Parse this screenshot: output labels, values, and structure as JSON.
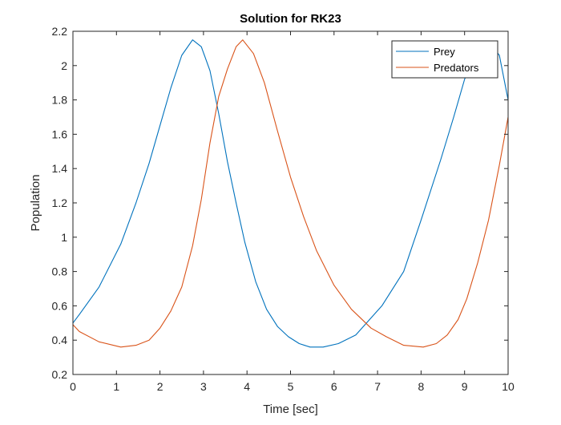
{
  "chart_data": {
    "type": "line",
    "title": "Solution for RK23",
    "xlabel": "Time [sec]",
    "ylabel": "Population",
    "xlim": [
      0,
      10
    ],
    "ylim": [
      0.2,
      2.2
    ],
    "xticks": [
      0,
      1,
      2,
      3,
      4,
      5,
      6,
      7,
      8,
      9,
      10
    ],
    "xtick_labels": [
      "0",
      "1",
      "2",
      "3",
      "4",
      "5",
      "6",
      "7",
      "8",
      "9",
      "10"
    ],
    "yticks": [
      0.2,
      0.4,
      0.6,
      0.8,
      1.0,
      1.2,
      1.4,
      1.6,
      1.8,
      2.0,
      2.2
    ],
    "ytick_labels": [
      "0.2",
      "0.4",
      "0.6",
      "0.8",
      "1",
      "1.2",
      "1.4",
      "1.6",
      "1.8",
      "2",
      "2.2"
    ],
    "grid": false,
    "legend_position": "top-right",
    "series": [
      {
        "name": "Prey",
        "color": "#0072BD",
        "x": [
          0,
          0.15,
          0.6,
          1.1,
          1.45,
          1.75,
          2.0,
          2.25,
          2.5,
          2.75,
          2.95,
          3.15,
          3.35,
          3.55,
          3.75,
          3.95,
          4.2,
          4.45,
          4.7,
          4.95,
          5.2,
          5.45,
          5.75,
          6.1,
          6.5,
          7.1,
          7.6,
          8.0,
          8.45,
          8.75,
          9.0,
          9.25,
          9.55,
          9.8,
          10.0
        ],
        "y": [
          0.5,
          0.55,
          0.71,
          0.96,
          1.2,
          1.43,
          1.65,
          1.87,
          2.06,
          2.15,
          2.11,
          1.97,
          1.72,
          1.44,
          1.2,
          0.97,
          0.74,
          0.58,
          0.48,
          0.42,
          0.38,
          0.36,
          0.36,
          0.38,
          0.43,
          0.6,
          0.8,
          1.1,
          1.45,
          1.7,
          1.92,
          2.08,
          2.14,
          2.06,
          1.8
        ]
      },
      {
        "name": "Predators",
        "color": "#D95319",
        "x": [
          0,
          0.15,
          0.6,
          1.1,
          1.45,
          1.75,
          2.0,
          2.25,
          2.5,
          2.75,
          2.95,
          3.15,
          3.35,
          3.55,
          3.75,
          3.9,
          4.15,
          4.4,
          4.7,
          5.0,
          5.3,
          5.6,
          6.0,
          6.4,
          6.85,
          7.2,
          7.6,
          8.05,
          8.35,
          8.6,
          8.85,
          9.05,
          9.3,
          9.55,
          9.8,
          10.0
        ],
        "y": [
          0.49,
          0.45,
          0.39,
          0.36,
          0.37,
          0.4,
          0.47,
          0.57,
          0.71,
          0.95,
          1.22,
          1.55,
          1.82,
          1.98,
          2.11,
          2.15,
          2.07,
          1.9,
          1.62,
          1.35,
          1.12,
          0.92,
          0.72,
          0.58,
          0.47,
          0.42,
          0.37,
          0.36,
          0.38,
          0.43,
          0.52,
          0.64,
          0.85,
          1.1,
          1.42,
          1.7
        ]
      }
    ]
  }
}
